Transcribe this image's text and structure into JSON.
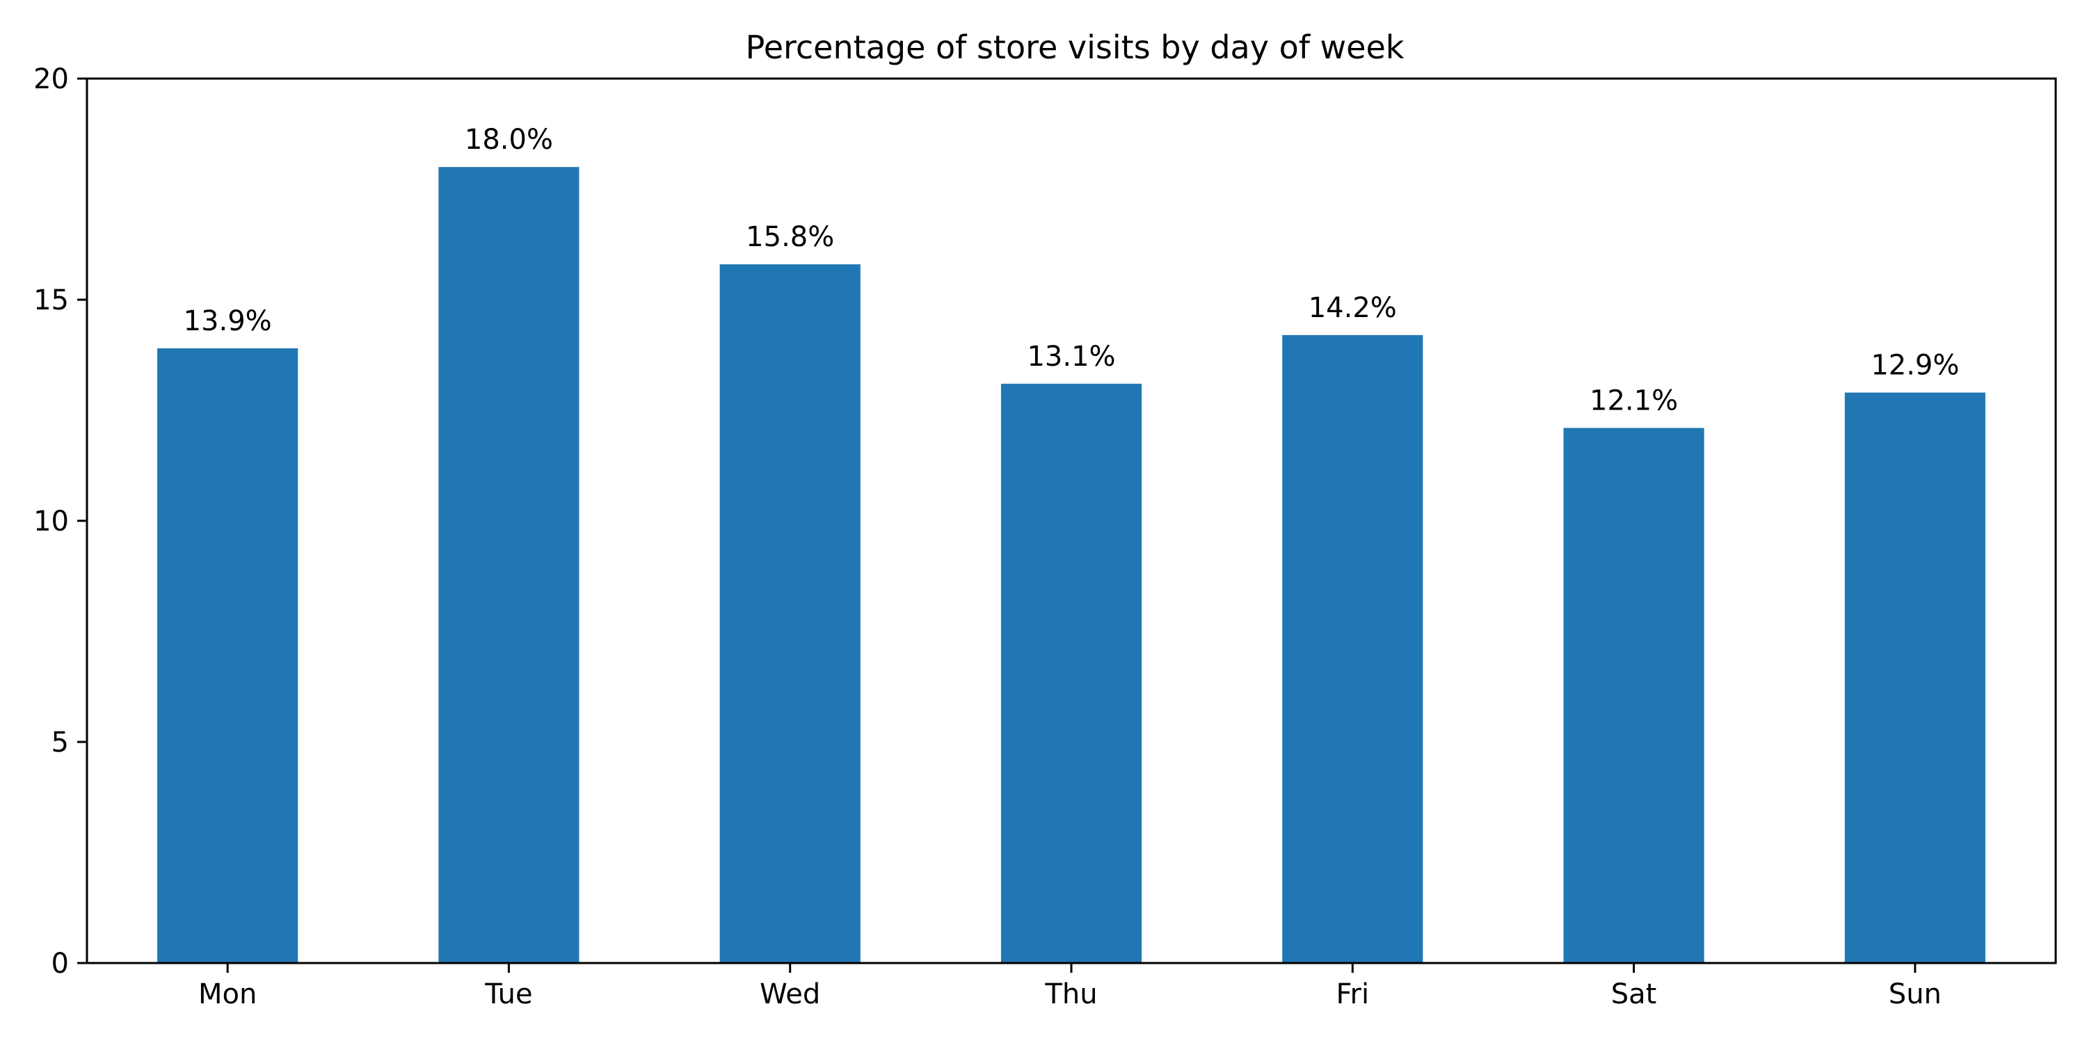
{
  "chart_data": {
    "type": "bar",
    "title": "Percentage of store visits by day of week",
    "xlabel": "",
    "ylabel": "",
    "categories": [
      "Mon",
      "Tue",
      "Wed",
      "Thu",
      "Fri",
      "Sat",
      "Sun"
    ],
    "values": [
      13.9,
      18.0,
      15.8,
      13.1,
      14.2,
      12.1,
      12.9
    ],
    "data_labels": [
      "13.9%",
      "18.0%",
      "15.8%",
      "13.1%",
      "14.2%",
      "12.1%",
      "12.9%"
    ],
    "ylim": [
      0,
      20
    ],
    "yticks": [
      0,
      5,
      10,
      15,
      20
    ],
    "ytick_labels": [
      "0",
      "5",
      "10",
      "15",
      "20"
    ],
    "grid": false,
    "legend": "none",
    "colors": {
      "bar": "#2077b4",
      "axis": "#000000",
      "text": "#000000",
      "background": "#ffffff"
    }
  }
}
